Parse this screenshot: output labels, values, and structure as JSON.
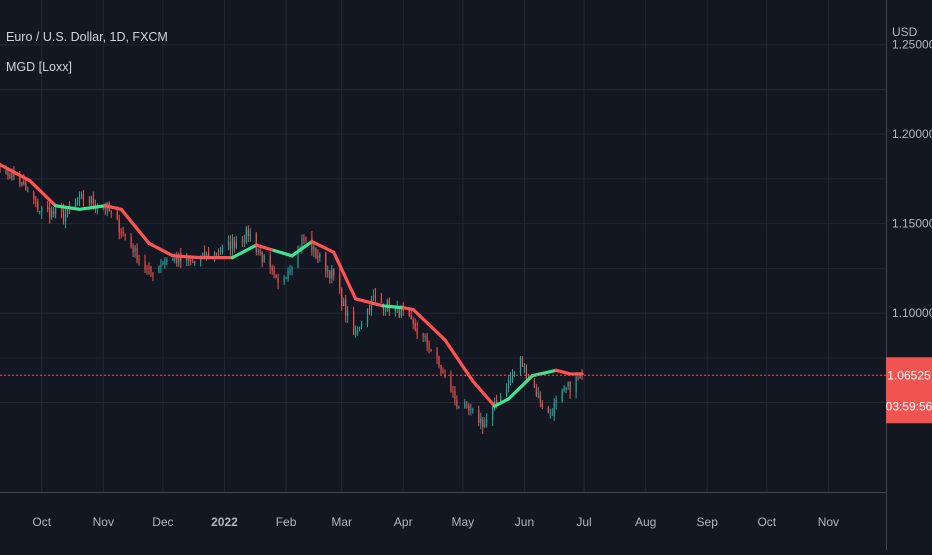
{
  "header": {
    "symbol_line": "Euro / U.S. Dollar, 1D, FXCM",
    "indicator_line": "MGD [Loxx]"
  },
  "price_axis": {
    "currency": "USD",
    "current_price": "1.06525",
    "countdown": "03:59:56",
    "current_price_value": 1.06525
  },
  "colors": {
    "background": "#131722",
    "grid": "#232733",
    "text": "#b2b5be",
    "candle_up": "#26a69a",
    "candle_down": "#ef5350",
    "mgd_bull": "#3fe38f",
    "mgd_bear": "#ff5252",
    "price_label_bg": "#f05350"
  },
  "chart_data": {
    "type": "candlestick",
    "title": "Euro / U.S. Dollar, 1D, FXCM",
    "indicator": "MGD [Loxx]",
    "x_axis_ticks": [
      "Oct",
      "Nov",
      "Dec",
      "2022",
      "Feb",
      "Mar",
      "Apr",
      "May",
      "Jun",
      "Jul",
      "Aug",
      "Sep",
      "Oct",
      "Nov"
    ],
    "x_axis_tick_dates": [
      "2021-10-01",
      "2021-11-01",
      "2021-12-01",
      "2022-01-01",
      "2022-02-01",
      "2022-03-01",
      "2022-04-01",
      "2022-05-01",
      "2022-06-01",
      "2022-07-01",
      "2022-08-01",
      "2022-09-01",
      "2022-10-01",
      "2022-11-01"
    ],
    "y_axis_ticks": [
      "1.25000",
      "1.20000",
      "1.15000",
      "1.10000"
    ],
    "y_axis_tick_values": [
      1.25,
      1.2,
      1.15,
      1.1
    ],
    "y_range": [
      1.0,
      1.275
    ],
    "x_range": [
      "2021-09-10",
      "2022-11-30"
    ],
    "grid": true,
    "price_path": [
      [
        "2021-09-10",
        1.182
      ],
      [
        "2021-09-20",
        1.173
      ],
      [
        "2021-09-30",
        1.158
      ],
      [
        "2021-10-12",
        1.154
      ],
      [
        "2021-10-22",
        1.164
      ],
      [
        "2021-11-02",
        1.16
      ],
      [
        "2021-11-12",
        1.143
      ],
      [
        "2021-11-24",
        1.122
      ],
      [
        "2021-12-03",
        1.131
      ],
      [
        "2021-12-15",
        1.128
      ],
      [
        "2021-12-31",
        1.135
      ],
      [
        "2022-01-13",
        1.145
      ],
      [
        "2022-01-28",
        1.115
      ],
      [
        "2022-02-10",
        1.142
      ],
      [
        "2022-02-25",
        1.12
      ],
      [
        "2022-03-07",
        1.088
      ],
      [
        "2022-03-17",
        1.108
      ],
      [
        "2022-03-31",
        1.1
      ],
      [
        "2022-04-14",
        1.082
      ],
      [
        "2022-04-28",
        1.05
      ],
      [
        "2022-05-12",
        1.038
      ],
      [
        "2022-05-30",
        1.073
      ],
      [
        "2022-06-13",
        1.043
      ],
      [
        "2022-06-22",
        1.057
      ],
      [
        "2022-06-30",
        1.06525
      ]
    ],
    "mgd_line": [
      [
        "2021-09-10",
        1.183,
        "bear"
      ],
      [
        "2021-09-25",
        1.174,
        "bear"
      ],
      [
        "2021-10-08",
        1.16,
        "bear"
      ],
      [
        "2021-10-20",
        1.158,
        "bull"
      ],
      [
        "2021-11-02",
        1.16,
        "bull"
      ],
      [
        "2021-11-10",
        1.158,
        "bear"
      ],
      [
        "2021-11-24",
        1.139,
        "bear"
      ],
      [
        "2021-12-06",
        1.132,
        "bear"
      ],
      [
        "2021-12-20",
        1.131,
        "bear"
      ],
      [
        "2022-01-05",
        1.131,
        "bear"
      ],
      [
        "2022-01-17",
        1.138,
        "bull"
      ],
      [
        "2022-01-26",
        1.135,
        "bear"
      ],
      [
        "2022-02-04",
        1.132,
        "bull"
      ],
      [
        "2022-02-14",
        1.14,
        "bull"
      ],
      [
        "2022-02-25",
        1.134,
        "bear"
      ],
      [
        "2022-03-08",
        1.108,
        "bear"
      ],
      [
        "2022-03-22",
        1.104,
        "bear"
      ],
      [
        "2022-04-01",
        1.103,
        "bull"
      ],
      [
        "2022-04-06",
        1.102,
        "bear"
      ],
      [
        "2022-04-22",
        1.085,
        "bear"
      ],
      [
        "2022-05-06",
        1.062,
        "bear"
      ],
      [
        "2022-05-17",
        1.048,
        "bear"
      ],
      [
        "2022-05-24",
        1.052,
        "bull"
      ],
      [
        "2022-06-05",
        1.065,
        "bull"
      ],
      [
        "2022-06-17",
        1.068,
        "bull"
      ],
      [
        "2022-06-24",
        1.066,
        "bear"
      ],
      [
        "2022-06-30",
        1.066,
        "bear"
      ]
    ]
  }
}
